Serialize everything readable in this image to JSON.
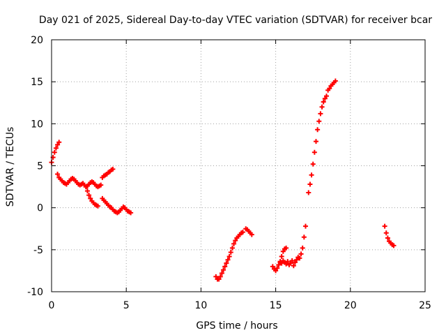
{
  "chart_data": {
    "type": "scatter",
    "title": "Day 021 of 2025, Sidereal Day-to-day VTEC variation (SDTVAR) for receiver bcar",
    "xlabel": "GPS time / hours",
    "ylabel": "SDTVAR / TECUs",
    "xlim": [
      0,
      25
    ],
    "ylim": [
      -10,
      20
    ],
    "xticks": [
      0,
      5,
      10,
      15,
      20,
      25
    ],
    "yticks": [
      -10,
      -5,
      0,
      5,
      10,
      15,
      20
    ],
    "xtick_labels": [
      "0",
      "5",
      "10",
      "15",
      "20",
      "25"
    ],
    "ytick_labels": [
      "-10",
      "-5",
      "0",
      "5",
      "10",
      "15",
      "20"
    ],
    "grid": true,
    "marker": "+",
    "color": "#ff0000",
    "series": [
      {
        "name": "seg1",
        "x": [
          0.0,
          0.1,
          0.2,
          0.3,
          0.4,
          0.5
        ],
        "y": [
          5.4,
          6.0,
          6.6,
          7.1,
          7.5,
          7.8
        ]
      },
      {
        "name": "seg2",
        "x": [
          0.4,
          0.5,
          0.6,
          0.7,
          0.8,
          0.9,
          1.0,
          1.1,
          1.2,
          1.3,
          1.4,
          1.5,
          1.6,
          1.7,
          1.8,
          1.9,
          2.0,
          2.1,
          2.2,
          2.3,
          2.4,
          2.5,
          2.6,
          2.7,
          2.8,
          2.9,
          3.0,
          3.1,
          3.2,
          3.3
        ],
        "y": [
          4.0,
          3.6,
          3.4,
          3.2,
          3.0,
          2.9,
          2.8,
          3.0,
          3.2,
          3.4,
          3.5,
          3.4,
          3.2,
          3.0,
          2.8,
          2.7,
          2.8,
          2.9,
          2.7,
          2.5,
          2.6,
          2.8,
          3.0,
          3.1,
          3.0,
          2.8,
          2.6,
          2.5,
          2.6,
          2.7
        ]
      },
      {
        "name": "seg3",
        "x": [
          2.3,
          2.4,
          2.5,
          2.6,
          2.7,
          2.8,
          2.9,
          3.0,
          3.1
        ],
        "y": [
          2.5,
          2.0,
          1.5,
          1.1,
          0.8,
          0.6,
          0.4,
          0.3,
          0.2
        ]
      },
      {
        "name": "seg4",
        "x": [
          3.4,
          3.5,
          3.6,
          3.7,
          3.8,
          3.9,
          4.0,
          4.1
        ],
        "y": [
          3.6,
          3.8,
          3.9,
          4.0,
          4.2,
          4.3,
          4.5,
          4.6
        ]
      },
      {
        "name": "seg5",
        "x": [
          3.4,
          3.5,
          3.6,
          3.7,
          3.8,
          3.9,
          4.0,
          4.1,
          4.2,
          4.3,
          4.4,
          4.5,
          4.6,
          4.7,
          4.8,
          4.9,
          5.0,
          5.1,
          5.2,
          5.3
        ],
        "y": [
          1.1,
          0.9,
          0.7,
          0.5,
          0.3,
          0.1,
          0.0,
          -0.2,
          -0.4,
          -0.5,
          -0.6,
          -0.5,
          -0.3,
          -0.1,
          0.1,
          0.0,
          -0.2,
          -0.4,
          -0.5,
          -0.6
        ]
      },
      {
        "name": "seg6",
        "x": [
          11.0,
          11.1,
          11.2,
          11.3,
          11.4,
          11.5,
          11.6,
          11.7,
          11.8,
          11.9,
          12.0,
          12.1,
          12.2,
          12.3,
          12.4,
          12.5,
          12.6,
          12.7,
          12.8
        ],
        "y": [
          -8.2,
          -8.5,
          -8.5,
          -8.2,
          -7.8,
          -7.4,
          -7.0,
          -6.6,
          -6.2,
          -5.8,
          -5.3,
          -4.8,
          -4.3,
          -3.9,
          -3.6,
          -3.4,
          -3.2,
          -3.0,
          -2.9
        ]
      },
      {
        "name": "seg7",
        "x": [
          13.0,
          13.1,
          13.2,
          13.3,
          13.4
        ],
        "y": [
          -2.5,
          -2.6,
          -2.8,
          -3.0,
          -3.2
        ]
      },
      {
        "name": "seg8",
        "x": [
          14.8,
          14.9,
          15.0,
          15.1,
          15.2,
          15.3,
          15.4,
          15.5,
          15.6,
          15.7
        ],
        "y": [
          -7.0,
          -7.3,
          -7.5,
          -7.2,
          -6.8,
          -6.4,
          -5.8,
          -5.2,
          -4.9,
          -4.8
        ]
      },
      {
        "name": "seg9",
        "x": [
          15.3,
          15.4,
          15.5,
          15.6,
          15.7,
          15.8,
          15.9,
          16.0,
          16.1,
          16.2,
          16.3,
          16.4,
          16.5,
          16.6,
          16.7,
          16.8,
          16.9,
          17.0
        ],
        "y": [
          -6.5,
          -6.6,
          -6.3,
          -6.5,
          -6.7,
          -6.4,
          -6.8,
          -6.6,
          -6.3,
          -6.9,
          -6.5,
          -6.2,
          -5.9,
          -6.0,
          -5.5,
          -4.8,
          -3.5,
          -2.2
        ]
      },
      {
        "name": "seg10",
        "x": [
          17.2,
          17.3,
          17.4,
          17.5,
          17.6,
          17.7,
          17.8,
          17.9,
          18.0,
          18.1,
          18.2,
          18.3,
          18.4
        ],
        "y": [
          1.8,
          2.8,
          3.9,
          5.2,
          6.6,
          7.9,
          9.3,
          10.3,
          11.2,
          12.0,
          12.6,
          13.0,
          13.3
        ]
      },
      {
        "name": "seg11",
        "x": [
          18.5,
          18.6,
          18.7,
          18.8,
          18.9,
          19.0
        ],
        "y": [
          14.0,
          14.2,
          14.5,
          14.7,
          14.9,
          15.1
        ]
      },
      {
        "name": "seg12",
        "x": [
          22.3,
          22.4,
          22.5,
          22.6,
          22.7,
          22.8,
          22.9
        ],
        "y": [
          -2.2,
          -3.0,
          -3.6,
          -4.0,
          -4.2,
          -4.4,
          -4.5
        ]
      }
    ]
  }
}
